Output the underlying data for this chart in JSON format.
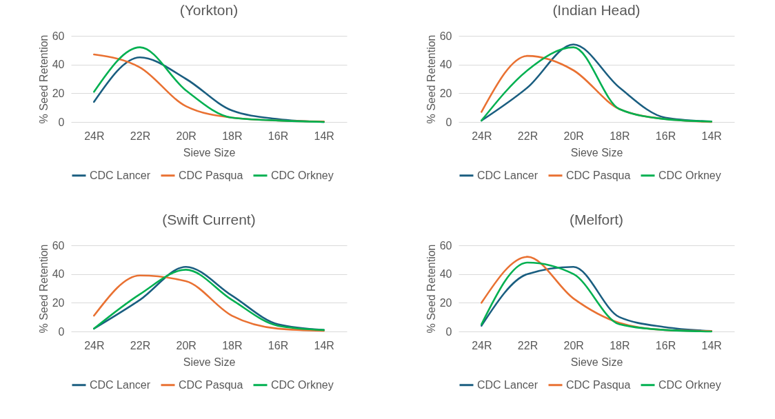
{
  "chart_data": [
    {
      "type": "line",
      "title": "(Yorkton)",
      "xlabel": "Sieve Size",
      "ylabel": "% Seed Retention",
      "categories": [
        "24R",
        "22R",
        "20R",
        "18R",
        "16R",
        "14R"
      ],
      "ylim": [
        0,
        60
      ],
      "yticks": [
        0,
        20,
        40,
        60
      ],
      "grid": "y",
      "legend": "bottom",
      "series": [
        {
          "name": "CDC Lancer",
          "color": "#1a5e80",
          "values": [
            14,
            45,
            30,
            8,
            2,
            0
          ]
        },
        {
          "name": "CDC Pasqua",
          "color": "#e97132",
          "values": [
            47,
            38,
            11,
            3,
            1,
            0.3
          ]
        },
        {
          "name": "CDC Orkney",
          "color": "#00b050",
          "values": [
            21,
            52,
            22,
            3,
            1,
            0
          ]
        }
      ]
    },
    {
      "type": "line",
      "title": "(Indian Head)",
      "xlabel": "Sieve Size",
      "ylabel": "% Seed Retention",
      "categories": [
        "24R",
        "22R",
        "20R",
        "18R",
        "16R",
        "14R"
      ],
      "ylim": [
        0,
        60
      ],
      "yticks": [
        0,
        20,
        40,
        60
      ],
      "grid": "y",
      "legend": "bottom",
      "series": [
        {
          "name": "CDC Lancer",
          "color": "#1a5e80",
          "values": [
            1,
            24,
            54,
            24,
            3,
            0.3
          ]
        },
        {
          "name": "CDC Pasqua",
          "color": "#e97132",
          "values": [
            7,
            46,
            36,
            9,
            2,
            0
          ]
        },
        {
          "name": "CDC Orkney",
          "color": "#00b050",
          "values": [
            1,
            36,
            52,
            9,
            2,
            0.3
          ]
        }
      ]
    },
    {
      "type": "line",
      "title": "(Swift Current)",
      "xlabel": "Sieve Size",
      "ylabel": "% Seed Retention",
      "categories": [
        "24R",
        "22R",
        "20R",
        "18R",
        "16R",
        "14R"
      ],
      "ylim": [
        0,
        60
      ],
      "yticks": [
        0,
        20,
        40,
        60
      ],
      "grid": "y",
      "legend": "bottom",
      "series": [
        {
          "name": "CDC Lancer",
          "color": "#1a5e80",
          "values": [
            2,
            22,
            45,
            25,
            5,
            1
          ]
        },
        {
          "name": "CDC Pasqua",
          "color": "#e97132",
          "values": [
            11,
            39,
            35,
            11,
            2,
            0.5
          ]
        },
        {
          "name": "CDC Orkney",
          "color": "#00b050",
          "values": [
            2,
            26,
            43,
            22,
            4,
            1
          ]
        }
      ]
    },
    {
      "type": "line",
      "title": "(Melfort)",
      "xlabel": "Sieve Size",
      "ylabel": "% Seed Retention",
      "categories": [
        "24R",
        "22R",
        "20R",
        "18R",
        "16R",
        "14R"
      ],
      "ylim": [
        0,
        60
      ],
      "yticks": [
        0,
        20,
        40,
        60
      ],
      "grid": "y",
      "legend": "bottom",
      "series": [
        {
          "name": "CDC Lancer",
          "color": "#1a5e80",
          "values": [
            4,
            40,
            45,
            10,
            3,
            0.3
          ]
        },
        {
          "name": "CDC Pasqua",
          "color": "#e97132",
          "values": [
            20,
            52,
            23,
            6,
            1,
            0.3
          ]
        },
        {
          "name": "CDC Orkney",
          "color": "#00b050",
          "values": [
            5,
            48,
            40,
            5,
            1,
            0
          ]
        }
      ]
    }
  ]
}
